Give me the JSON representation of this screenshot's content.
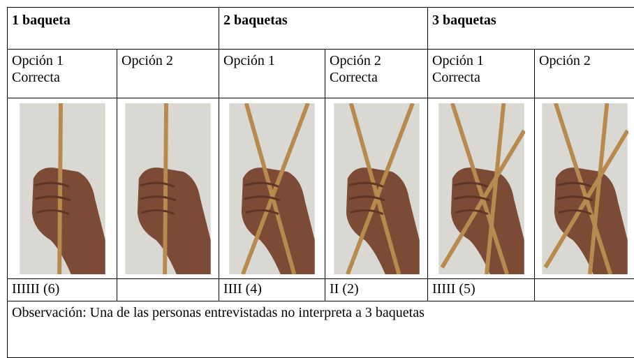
{
  "table": {
    "groups": [
      "1 baqueta",
      "2 baquetas",
      "3 baquetas"
    ],
    "options": [
      {
        "label": "Opción 1",
        "note": "Correcta"
      },
      {
        "label": "Opción 2",
        "note": null
      },
      {
        "label": "Opción 1",
        "note": null
      },
      {
        "label": "Opción 2",
        "note": "Correcta"
      },
      {
        "label": "Opción 1",
        "note": "Correcta"
      },
      {
        "label": "Opción 2",
        "note": null
      }
    ],
    "counts": [
      "IIIIII (6)",
      null,
      "IIII (4)",
      "II (2)",
      "IIIII (5)",
      null
    ],
    "observation": "Observación: Una de las personas entrevistadas no interpreta a 3 baquetas"
  }
}
